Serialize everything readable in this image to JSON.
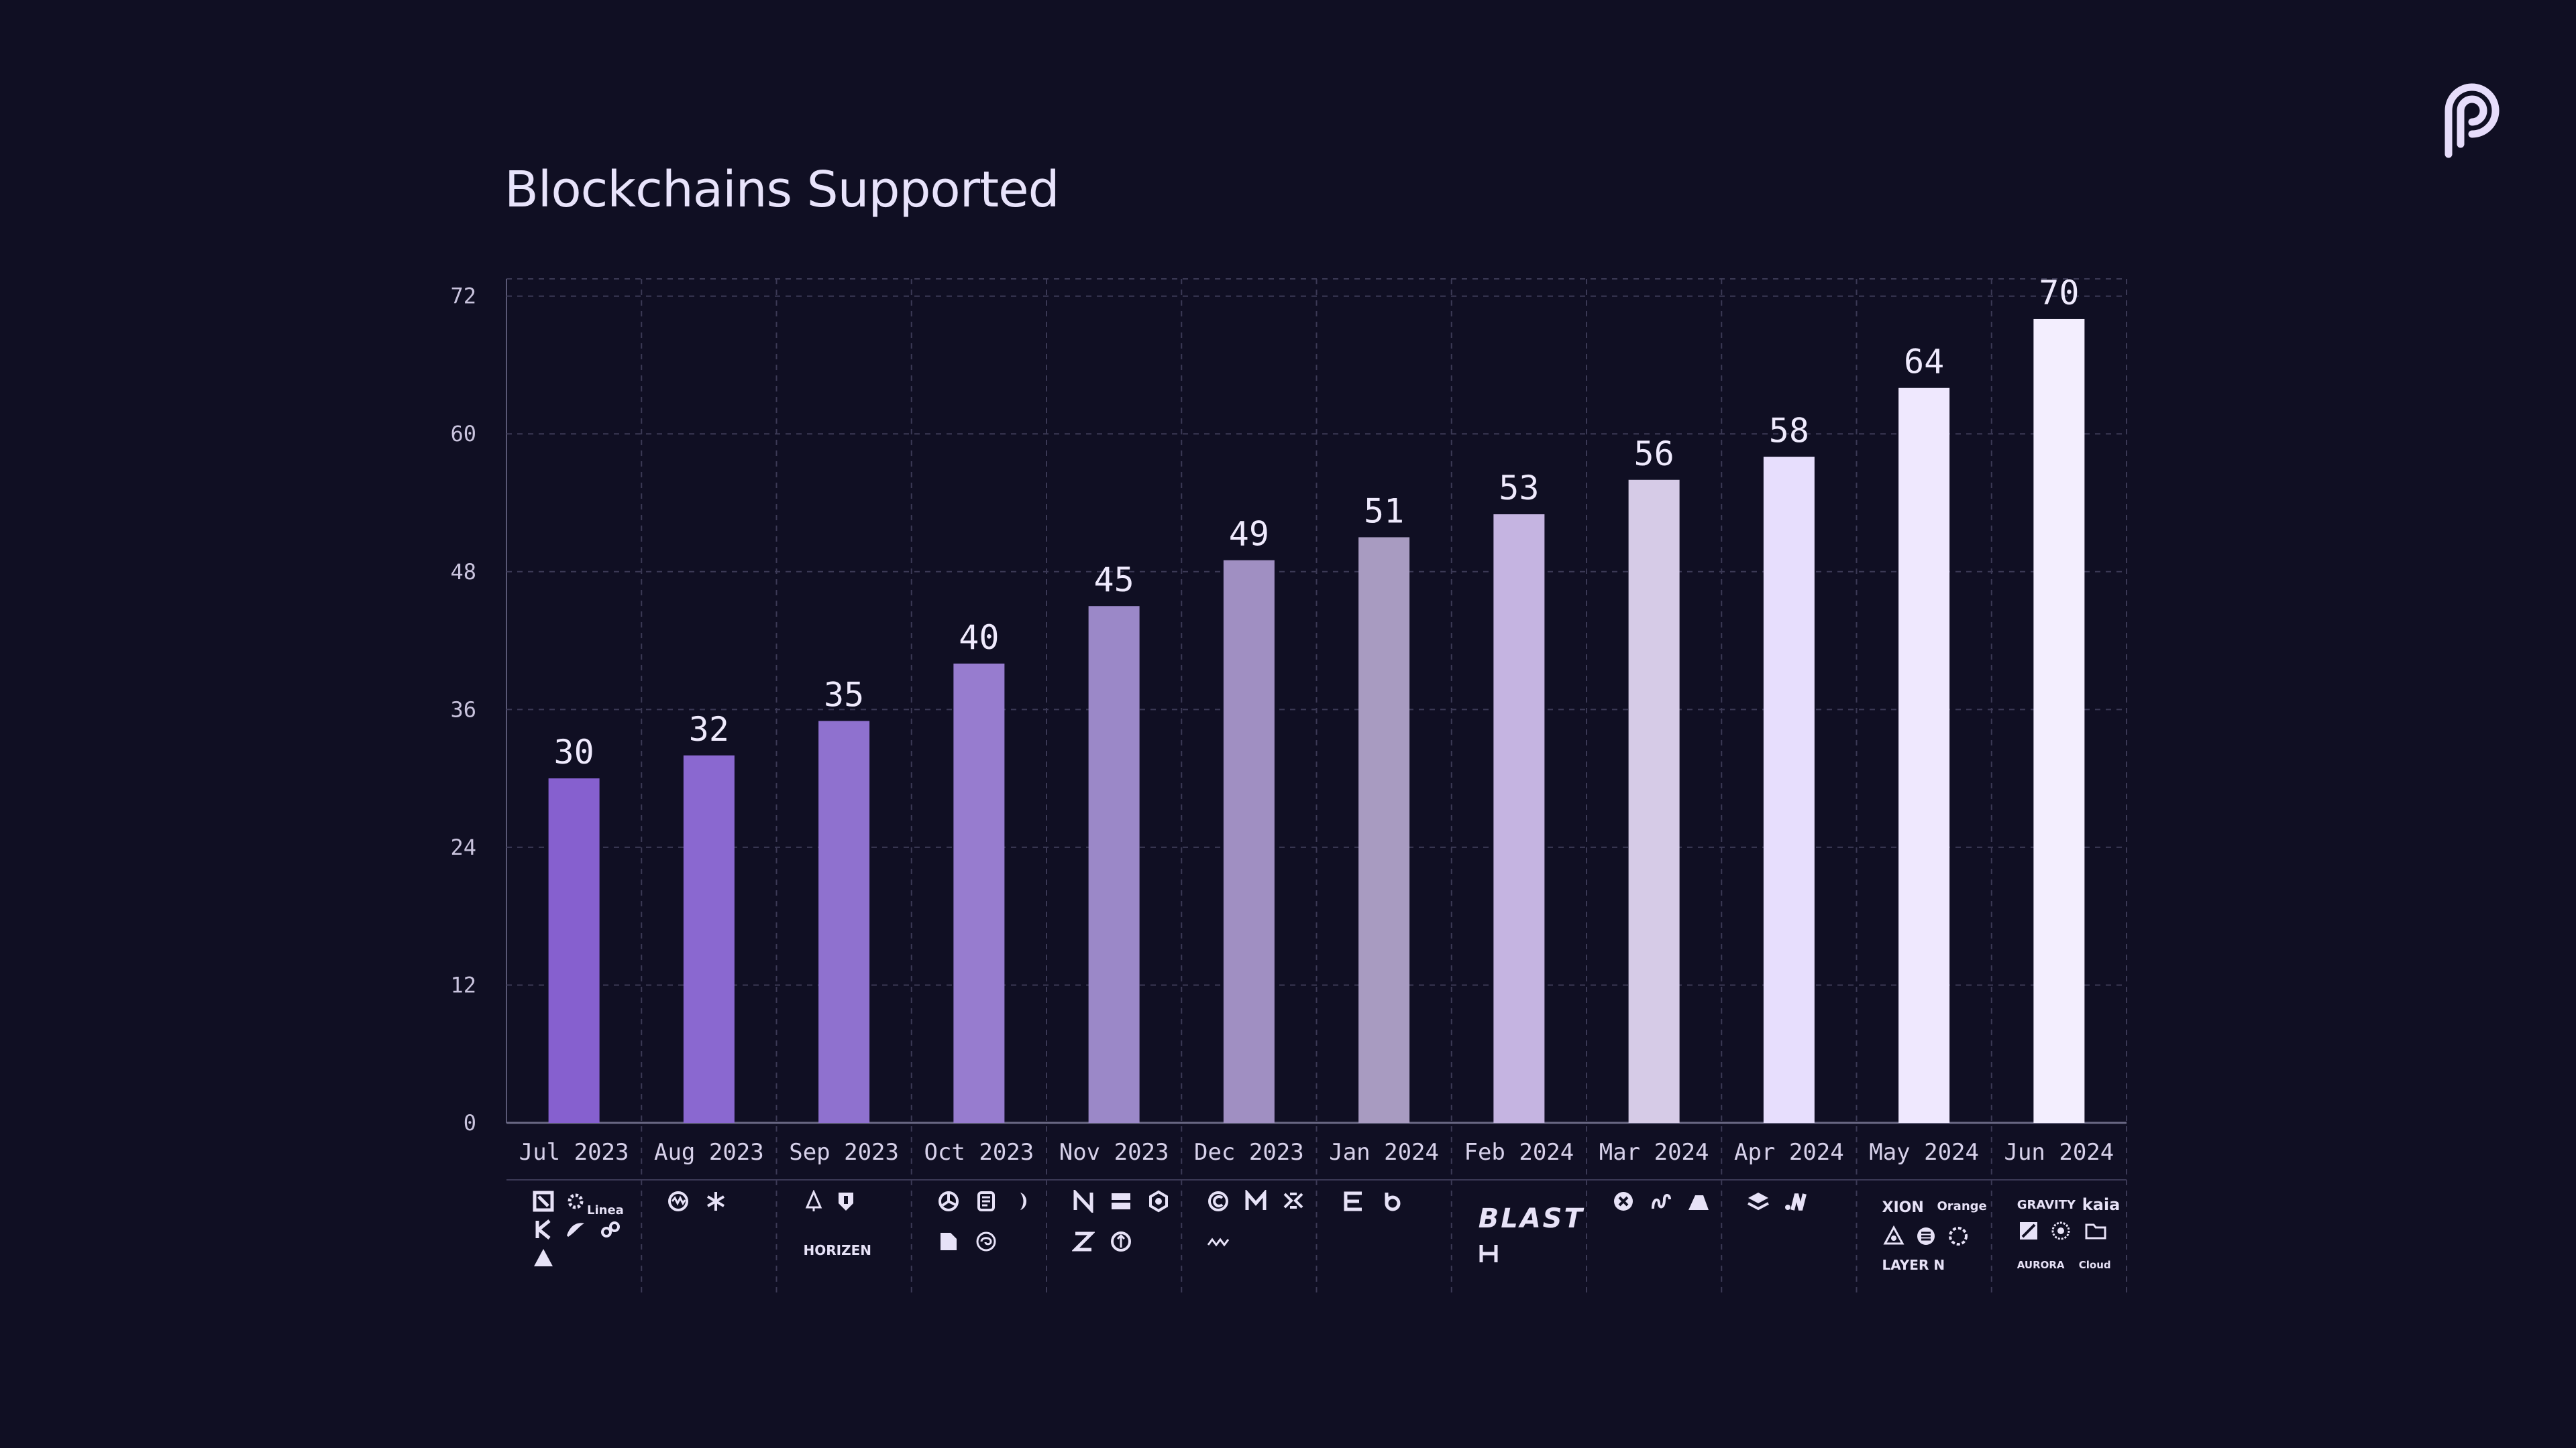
{
  "chart_data": {
    "type": "bar",
    "title": "Blockchains Supported",
    "categories": [
      "Jul 2023",
      "Aug 2023",
      "Sep 2023",
      "Oct 2023",
      "Nov 2023",
      "Dec 2023",
      "Jan 2024",
      "Feb 2024",
      "Mar 2024",
      "Apr 2024",
      "May 2024",
      "Jun 2024"
    ],
    "values": [
      30,
      32,
      35,
      40,
      45,
      49,
      51,
      53,
      56,
      58,
      64,
      70
    ],
    "data_labels": [
      "30",
      "32",
      "35",
      "40",
      "45",
      "49",
      "51",
      "53",
      "56",
      "58",
      "64",
      "70"
    ],
    "yticks": [
      "0",
      "12",
      "24",
      "36",
      "48",
      "60",
      "72"
    ],
    "ylim": [
      0,
      73.5
    ],
    "xlabel": "",
    "ylabel": "",
    "grid": true,
    "legend": "none",
    "bar_colors": [
      "#8660cf",
      "#8a68d0",
      "#8f71cf",
      "#977ccf",
      "#9b88c8",
      "#a08fc2",
      "#a89bc1",
      "#c5b4e1",
      "#d6cbe7",
      "#e7defd",
      "#efe8fe",
      "#f3eefe"
    ]
  },
  "colors": {
    "background": "#100f23",
    "grid": "#3b3955",
    "brand": "#e6dcfa"
  },
  "chain_logos": {
    "Jul 2023": {
      "icons": [
        "square-icon",
        "sun-icon",
        "k-icon",
        "wing-icon",
        "link-icon",
        "triangle-icon"
      ],
      "texts": [
        "Linea"
      ]
    },
    "Aug 2023": {
      "icons": [
        "wave-circle-icon",
        "asterisk-icon"
      ],
      "texts": []
    },
    "Sep 2023": {
      "icons": [
        "tree-icon",
        "shield-icon"
      ],
      "texts": [
        "HORIZEN"
      ]
    },
    "Oct 2023": {
      "icons": [
        "swirl-icon",
        "scroll-icon",
        "moon-icon",
        "page-icon",
        "spiral-icon"
      ],
      "texts": []
    },
    "Nov 2023": {
      "icons": [
        "n-icon",
        "box-icon",
        "hex-icon",
        "z-icon",
        "coin-icon"
      ],
      "texts": []
    },
    "Dec 2023": {
      "icons": [
        "c-icon",
        "m-icon",
        "x-pattern-icon",
        "squiggle-icon"
      ],
      "texts": []
    },
    "Jan 2024": {
      "icons": [
        "e-icon",
        "b-icon"
      ],
      "texts": []
    },
    "Feb 2024": {
      "icons": [
        "h-icon"
      ],
      "texts": [
        "BLAST"
      ]
    },
    "Mar 2024": {
      "icons": [
        "x-circle-icon",
        "wave-icon",
        "mountain-icon"
      ],
      "texts": []
    },
    "Apr 2024": {
      "icons": [
        "layers-icon",
        "dots-m-icon"
      ],
      "texts": []
    },
    "May 2024": {
      "icons": [
        "triad-icon",
        "s-circle-icon",
        "ring-icon"
      ],
      "texts": [
        "XION",
        "Orange",
        "LAYER N"
      ]
    },
    "Jun 2024": {
      "icons": [
        "tile-icon",
        "flower-icon",
        "folder-icon"
      ],
      "texts": [
        "GRAVITY",
        "kaia",
        "AURORA",
        "Cloud"
      ]
    }
  }
}
